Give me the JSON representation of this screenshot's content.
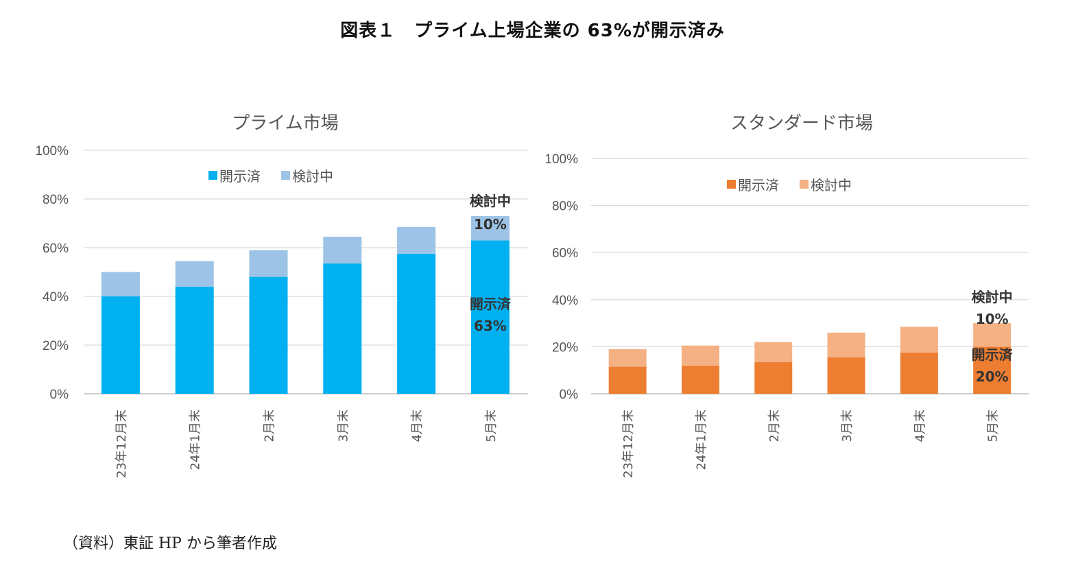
{
  "figure_title": "図表１　プライム上場企業の 63%が開示済み",
  "source": "（資料）東証 HP から筆者作成",
  "chart_data": [
    {
      "type": "bar",
      "stacked": true,
      "title": "プライム市場",
      "categories": [
        "23年12月末",
        "24年1月末",
        "2月末",
        "3月末",
        "4月末",
        "5月末"
      ],
      "series": [
        {
          "name": "開示済",
          "color": "#00b0f0",
          "values": [
            40,
            44,
            48,
            53.5,
            57.5,
            63
          ]
        },
        {
          "name": "検討中",
          "color": "#9dc3e6",
          "values": [
            10,
            10.5,
            11,
            11,
            11,
            10
          ]
        }
      ],
      "ylim": [
        0,
        100
      ],
      "yticks": [
        0,
        20,
        40,
        60,
        80,
        100
      ],
      "ytick_labels": [
        "0%",
        "20%",
        "40%",
        "60%",
        "80%",
        "100%"
      ],
      "grid": true,
      "legend": "top-center",
      "annotations": {
        "pending_label": "検討中",
        "pending_value": "10%",
        "disclosed_label": "開示済",
        "disclosed_value": "63%"
      }
    },
    {
      "type": "bar",
      "stacked": true,
      "title": "スタンダード市場",
      "categories": [
        "23年12月末",
        "24年1月末",
        "2月末",
        "3月末",
        "4月末",
        "5月末"
      ],
      "series": [
        {
          "name": "開示済",
          "color": "#ed7d31",
          "values": [
            11.5,
            12,
            13.5,
            15.5,
            17.5,
            20
          ]
        },
        {
          "name": "検討中",
          "color": "#f4b183",
          "values": [
            7.5,
            8.5,
            8.5,
            10.5,
            11,
            10
          ]
        }
      ],
      "ylim": [
        0,
        100
      ],
      "yticks": [
        0,
        20,
        40,
        60,
        80,
        100
      ],
      "ytick_labels": [
        "0%",
        "20%",
        "40%",
        "60%",
        "80%",
        "100%"
      ],
      "grid": true,
      "legend": "top-center",
      "annotations": {
        "pending_label": "検討中",
        "pending_value": "10%",
        "disclosed_label": "開示済",
        "disclosed_value": "20%"
      }
    }
  ]
}
